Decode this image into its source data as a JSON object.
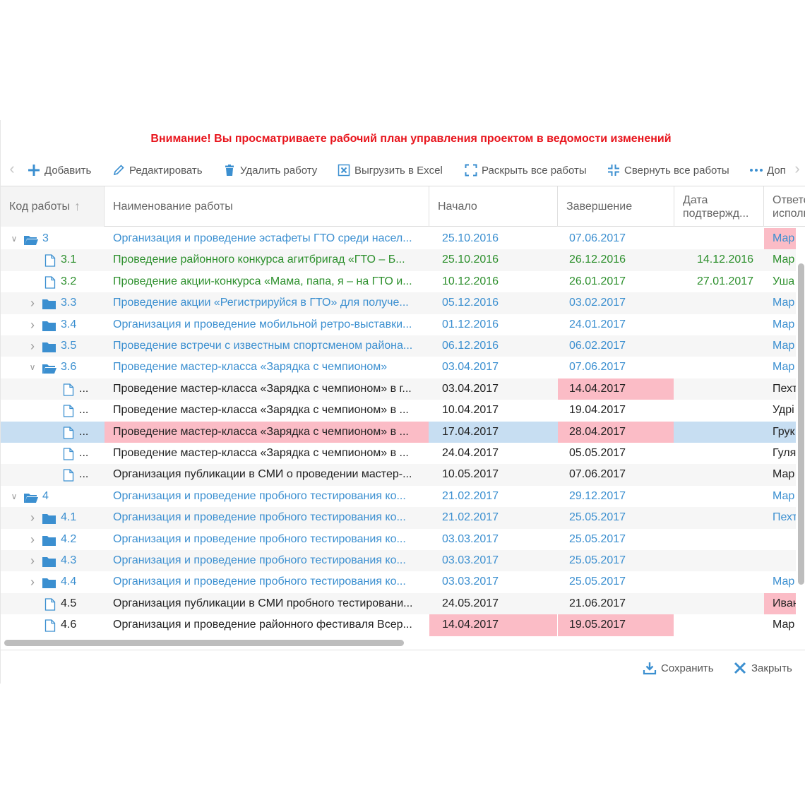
{
  "warning": "Внимание!  Вы просматриваете рабочий план управления проектом в ведомости изменений",
  "toolbar": {
    "add": "Добавить",
    "edit": "Редактировать",
    "delete": "Удалить работу",
    "export": "Выгрузить в Excel",
    "expand_all": "Раскрыть все работы",
    "collapse_all": "Свернуть все работы",
    "more": "Доп",
    "prev_icon": "chevron-left-icon",
    "next_icon": "chevron-right-icon"
  },
  "columns": {
    "code": "Код работы",
    "name": "Наименование работы",
    "start": "Начало",
    "end": "Завершение",
    "confirm_line1": "Дата",
    "confirm_line2": "подтвержд...",
    "resp_line1": "Ответс",
    "resp_line2": "исполн"
  },
  "rows": [
    {
      "code": "3",
      "level": 0,
      "type": "folder-open",
      "toggle": "expanded",
      "name": "Организация и проведение эстафеты ГТО среди насел...",
      "start": "25.10.2016",
      "end": "07.06.2017",
      "confirm": "",
      "resp": "Мар",
      "color": "blue"
    },
    {
      "code": "3.1",
      "level": 1,
      "type": "doc",
      "toggle": "",
      "name": "Проведение районного конкурса агитбригад «ГТО – Б...",
      "start": "25.10.2016",
      "end": "26.12.2016",
      "confirm": "14.12.2016",
      "resp": "Мар",
      "color": "green"
    },
    {
      "code": "3.2",
      "level": 1,
      "type": "doc",
      "toggle": "",
      "name": "Проведение акции-конкурса «Мама, папа, я – на ГТО и...",
      "start": "10.12.2016",
      "end": "26.01.2017",
      "confirm": "27.01.2017",
      "resp": "Уша",
      "color": "green"
    },
    {
      "code": "3.3",
      "level": 1,
      "type": "folder",
      "toggle": "collapsed",
      "name": "Проведение акции «Регистрируйся в ГТО» для получе...",
      "start": "05.12.2016",
      "end": "03.02.2017",
      "confirm": "",
      "resp": "Мар",
      "color": "blue"
    },
    {
      "code": "3.4",
      "level": 1,
      "type": "folder",
      "toggle": "collapsed",
      "name": "Организация и проведение мобильной ретро-выставки...",
      "start": "01.12.2016",
      "end": "24.01.2017",
      "confirm": "",
      "resp": "Мар",
      "color": "blue"
    },
    {
      "code": "3.5",
      "level": 1,
      "type": "folder",
      "toggle": "collapsed",
      "name": "Проведение встречи с известным спортсменом района...",
      "start": "06.12.2016",
      "end": "06.02.2017",
      "confirm": "",
      "resp": "Мар",
      "color": "blue"
    },
    {
      "code": "3.6",
      "level": 1,
      "type": "folder-open",
      "toggle": "expanded",
      "name": "Проведение мастер-класса «Зарядка с чемпионом»",
      "start": "03.04.2017",
      "end": "07.06.2017",
      "confirm": "",
      "resp": "Мар",
      "color": "blue"
    },
    {
      "code": "...",
      "level": 2,
      "type": "doc",
      "toggle": "",
      "name": "Проведение мастер-класса «Зарядка с чемпионом» в г...",
      "start": "03.04.2017",
      "end": "14.04.2017",
      "confirm": "",
      "resp": "Пехт",
      "color": "black"
    },
    {
      "code": "...",
      "level": 2,
      "type": "doc",
      "toggle": "",
      "name": "Проведение мастер-класса «Зарядка с чемпионом» в ...",
      "start": "10.04.2017",
      "end": "19.04.2017",
      "confirm": "",
      "resp": "Удрі",
      "color": "black"
    },
    {
      "code": "...",
      "level": 2,
      "type": "doc",
      "toggle": "",
      "name": "Проведение мастер-класса «Зарядка с чемпионом» в ...",
      "start": "17.04.2017",
      "end": "28.04.2017",
      "confirm": "",
      "resp": "Грук",
      "color": "black"
    },
    {
      "code": "...",
      "level": 2,
      "type": "doc",
      "toggle": "",
      "name": "Проведение мастер-класса «Зарядка с чемпионом» в ...",
      "start": "24.04.2017",
      "end": "05.05.2017",
      "confirm": "",
      "resp": "Гуля",
      "color": "black"
    },
    {
      "code": "...",
      "level": 2,
      "type": "doc",
      "toggle": "",
      "name": "Организация публикации в СМИ о проведении мастер-...",
      "start": "10.05.2017",
      "end": "07.06.2017",
      "confirm": "",
      "resp": "Мар",
      "color": "black"
    },
    {
      "code": "4",
      "level": 0,
      "type": "folder-open",
      "toggle": "expanded",
      "name": "Организация и проведение пробного тестирования ко...",
      "start": "21.02.2017",
      "end": "29.12.2017",
      "confirm": "",
      "resp": "Мар",
      "color": "blue"
    },
    {
      "code": "4.1",
      "level": 1,
      "type": "folder",
      "toggle": "collapsed",
      "name": "Организация и проведение пробного тестирования ко...",
      "start": "21.02.2017",
      "end": "25.05.2017",
      "confirm": "",
      "resp": "Пехт",
      "color": "blue"
    },
    {
      "code": "4.2",
      "level": 1,
      "type": "folder",
      "toggle": "collapsed",
      "name": "Организация и проведение пробного тестирования ко...",
      "start": "03.03.2017",
      "end": "25.05.2017",
      "confirm": "",
      "resp": "",
      "color": "blue"
    },
    {
      "code": "4.3",
      "level": 1,
      "type": "folder",
      "toggle": "collapsed",
      "name": "Организация и проведение пробного тестирования ко...",
      "start": "03.03.2017",
      "end": "25.05.2017",
      "confirm": "",
      "resp": "",
      "color": "blue"
    },
    {
      "code": "4.4",
      "level": 1,
      "type": "folder",
      "toggle": "collapsed",
      "name": "Организация и проведение пробного тестирования ко...",
      "start": "03.03.2017",
      "end": "25.05.2017",
      "confirm": "",
      "resp": "Мар",
      "color": "blue"
    },
    {
      "code": "4.5",
      "level": 1,
      "type": "doc",
      "toggle": "",
      "name": "Организация публикации в СМИ пробного тестировани...",
      "start": "24.05.2017",
      "end": "21.06.2017",
      "confirm": "",
      "resp": "Иван",
      "color": "black"
    },
    {
      "code": "4.6",
      "level": 1,
      "type": "doc",
      "toggle": "",
      "name": "Организация и проведение районного фестиваля Всер...",
      "start": "14.04.2017",
      "end": "19.05.2017",
      "confirm": "",
      "resp": "Мар",
      "color": "black"
    }
  ],
  "highlights": [
    {
      "row": 0,
      "cells": [
        "resp"
      ]
    },
    {
      "row": 7,
      "cells": [
        "end"
      ]
    },
    {
      "row": 9,
      "cells": [
        "name",
        "end"
      ]
    },
    {
      "row": 17,
      "cells": [
        "resp"
      ]
    },
    {
      "row": 18,
      "cells": [
        "start",
        "end"
      ]
    }
  ],
  "selected_row": 9,
  "colors": {
    "blue": "#3b8fd0",
    "green": "#2c8f2c",
    "highlight": "#fbbcc6",
    "selection": "#c7def2",
    "warning": "#e8141c"
  },
  "footer": {
    "save": "Сохранить",
    "close": "Закрыть"
  }
}
